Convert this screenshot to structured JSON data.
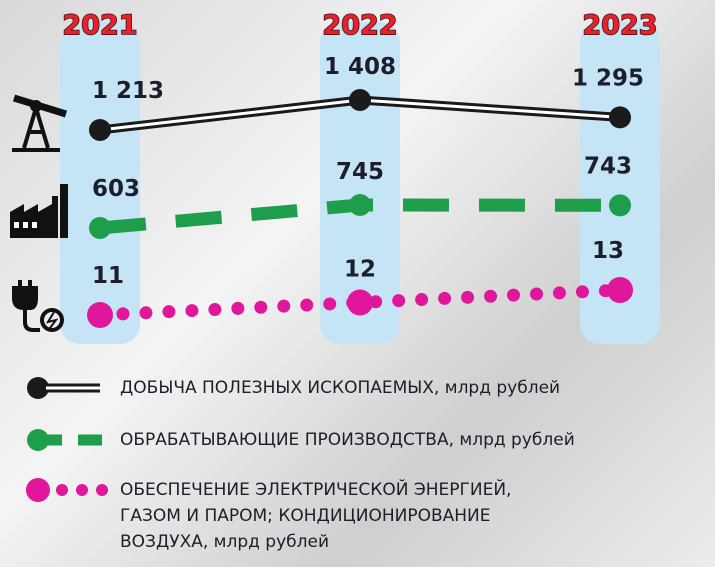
{
  "chart_data": {
    "type": "line",
    "categories": [
      "2021",
      "2022",
      "2023"
    ],
    "series": [
      {
        "name": "ДОБЫЧА ПОЛЕЗНЫХ ИСКОПАЕМЫХ, млрд рублей",
        "color": "#1a1a1a",
        "style": "double",
        "values": [
          1213,
          1408,
          1295
        ],
        "value_labels": [
          "1 213",
          "1 408",
          "1 295"
        ]
      },
      {
        "name": "ОБРАБАТЫВАЮЩИЕ ПРОИЗВОДСТВА, млрд рублей",
        "color": "#1e9e4a",
        "style": "dashed",
        "values": [
          603,
          745,
          743
        ],
        "value_labels": [
          "603",
          "745",
          "743"
        ]
      },
      {
        "name": "ОБЕСПЕЧЕНИЕ ЭЛЕКТРИЧЕСКОЙ ЭНЕРГИЕЙ, ГАЗОМ И ПАРОМ; КОНДИЦИОНИРОВАНИЕ ВОЗДУХА, млрд рублей",
        "color": "#e0179a",
        "style": "dotted",
        "values": [
          11,
          12,
          13
        ],
        "value_labels": [
          "11",
          "12",
          "13"
        ]
      }
    ]
  }
}
